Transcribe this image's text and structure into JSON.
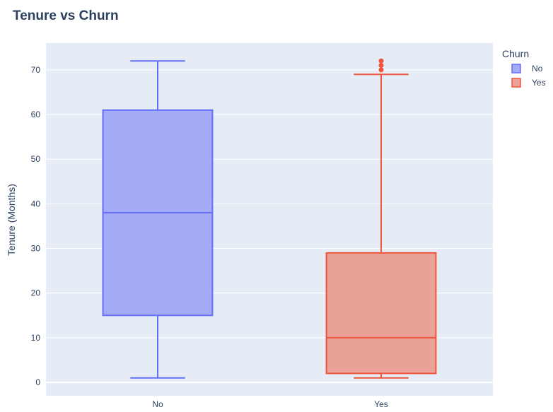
{
  "chart_data": {
    "type": "box",
    "title": "Tenure vs Churn",
    "xlabel": "",
    "ylabel": "Tenure (Months)",
    "ylim": [
      -3,
      76
    ],
    "yticks": [
      0,
      10,
      20,
      30,
      40,
      50,
      60,
      70
    ],
    "categories": [
      "No",
      "Yes"
    ],
    "grid": true,
    "legend": {
      "title": "Churn",
      "position": "top-right"
    },
    "series": [
      {
        "name": "No",
        "category": "No",
        "color": "#636efa",
        "fill": "#a3abf7",
        "min": 1,
        "q1": 15,
        "median": 38,
        "q3": 61,
        "max": 72,
        "outliers": []
      },
      {
        "name": "Yes",
        "category": "Yes",
        "color": "#ef553b",
        "fill": "#eaa197",
        "min": 1,
        "q1": 2,
        "median": 10,
        "q3": 29,
        "max": 69,
        "outliers": [
          70,
          71,
          72
        ]
      }
    ]
  }
}
